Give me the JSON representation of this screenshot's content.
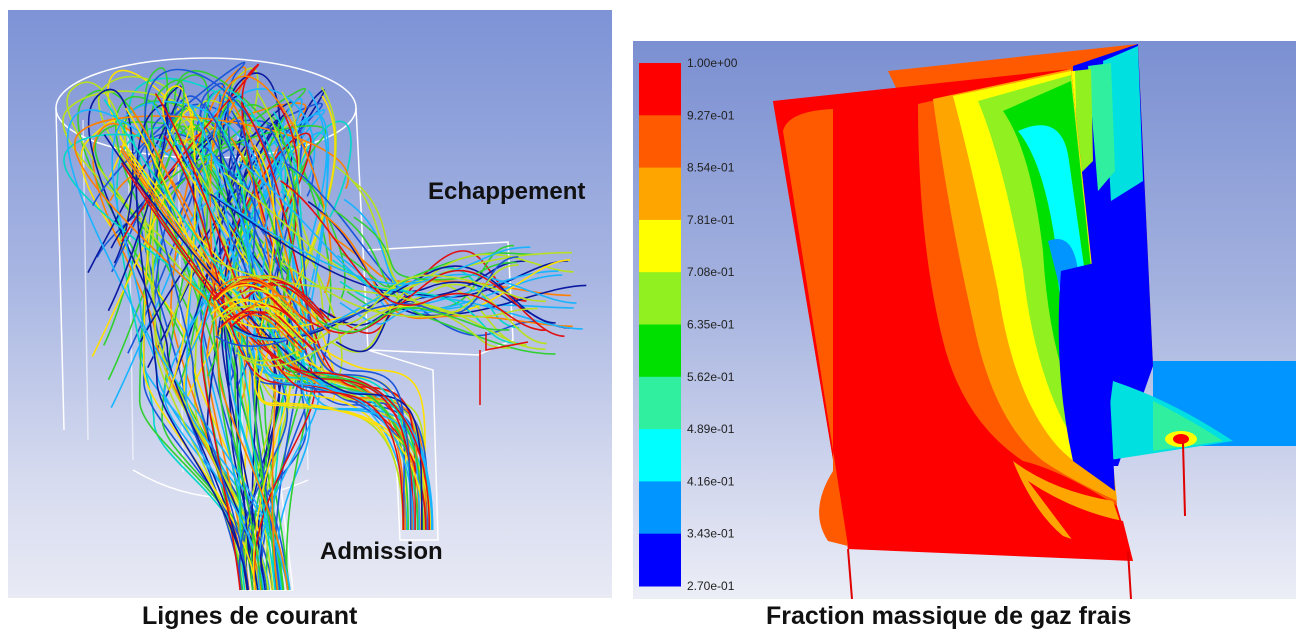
{
  "left_figure": {
    "caption": "Lignes de courant",
    "label_exhaust": "Echappement",
    "label_intake": "Admission"
  },
  "right_figure": {
    "caption": "Fraction massique de gaz frais",
    "colorbar": {
      "labels": [
        "1.00e+00",
        "9.27e-01",
        "8.54e-01",
        "7.81e-01",
        "7.08e-01",
        "6.35e-01",
        "5.62e-01",
        "4.89e-01",
        "4.16e-01",
        "3.43e-01",
        "2.70e-01"
      ],
      "colors": [
        "#ff0000",
        "#ff5a00",
        "#ffa500",
        "#ffff00",
        "#90f020",
        "#00e000",
        "#30f0a0",
        "#00ffff",
        "#0095ff",
        "#0000ff"
      ]
    }
  },
  "colors": {
    "streamlines": [
      "#0a1aa0",
      "#1b56d8",
      "#19b4ff",
      "#00d8c8",
      "#30d030",
      "#b8e020",
      "#ffe000",
      "#ff8000",
      "#e01010"
    ]
  }
}
